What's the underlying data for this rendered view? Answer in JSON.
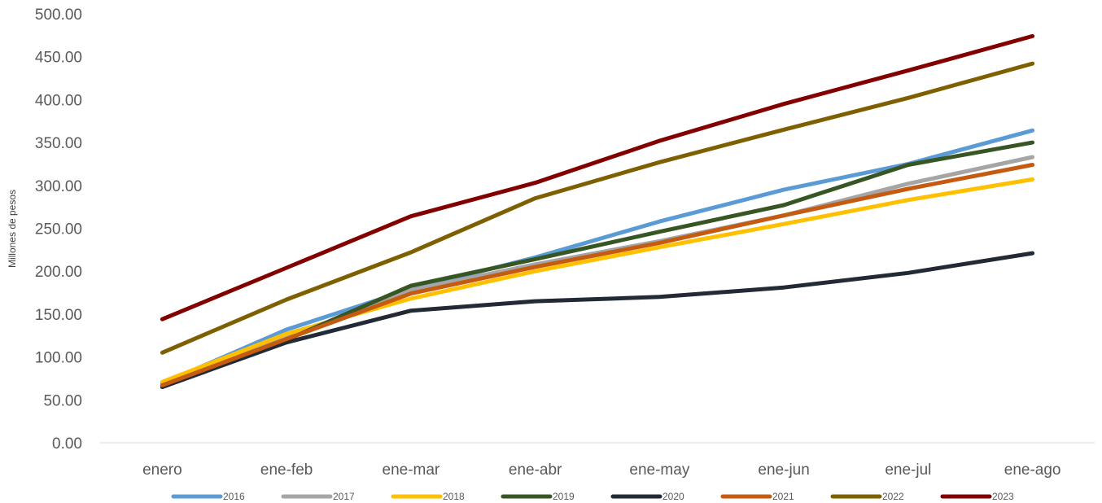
{
  "chart_data": {
    "type": "line",
    "title": "",
    "xlabel": "",
    "ylabel": "Millones de pesos",
    "ylim": [
      0,
      500
    ],
    "yticks": [
      "0.00",
      "50.00",
      "100.00",
      "150.00",
      "200.00",
      "250.00",
      "300.00",
      "350.00",
      "400.00",
      "450.00",
      "500.00"
    ],
    "grid": false,
    "legend_position": "bottom",
    "categories": [
      "enero",
      "ene-feb",
      "ene-mar",
      "ene-abr",
      "ene-may",
      "ene-jun",
      "ene-jul",
      "ene-ago"
    ],
    "series": [
      {
        "name": "2016",
        "color": "#5B9BD5",
        "values": [
          69,
          132,
          179,
          216,
          258,
          295,
          325,
          364
        ]
      },
      {
        "name": "2017",
        "color": "#A5A5A5",
        "values": [
          67,
          122,
          178,
          208,
          235,
          265,
          302,
          333
        ]
      },
      {
        "name": "2018",
        "color": "#FFC000",
        "values": [
          71,
          127,
          168,
          200,
          228,
          255,
          283,
          307
        ]
      },
      {
        "name": "2019",
        "color": "#375623",
        "values": [
          65,
          120,
          183,
          214,
          246,
          277,
          324,
          350
        ]
      },
      {
        "name": "2020",
        "color": "#222A35",
        "values": [
          65,
          117,
          154,
          165,
          170,
          181,
          198,
          221
        ]
      },
      {
        "name": "2021",
        "color": "#C55A11",
        "values": [
          67,
          121,
          174,
          205,
          233,
          265,
          296,
          324
        ]
      },
      {
        "name": "2022",
        "color": "#7F6000",
        "values": [
          105,
          167,
          222,
          285,
          327,
          365,
          402,
          442
        ]
      },
      {
        "name": "2023",
        "color": "#820000",
        "values": [
          144,
          204,
          264,
          303,
          352,
          395,
          434,
          474
        ]
      }
    ]
  }
}
